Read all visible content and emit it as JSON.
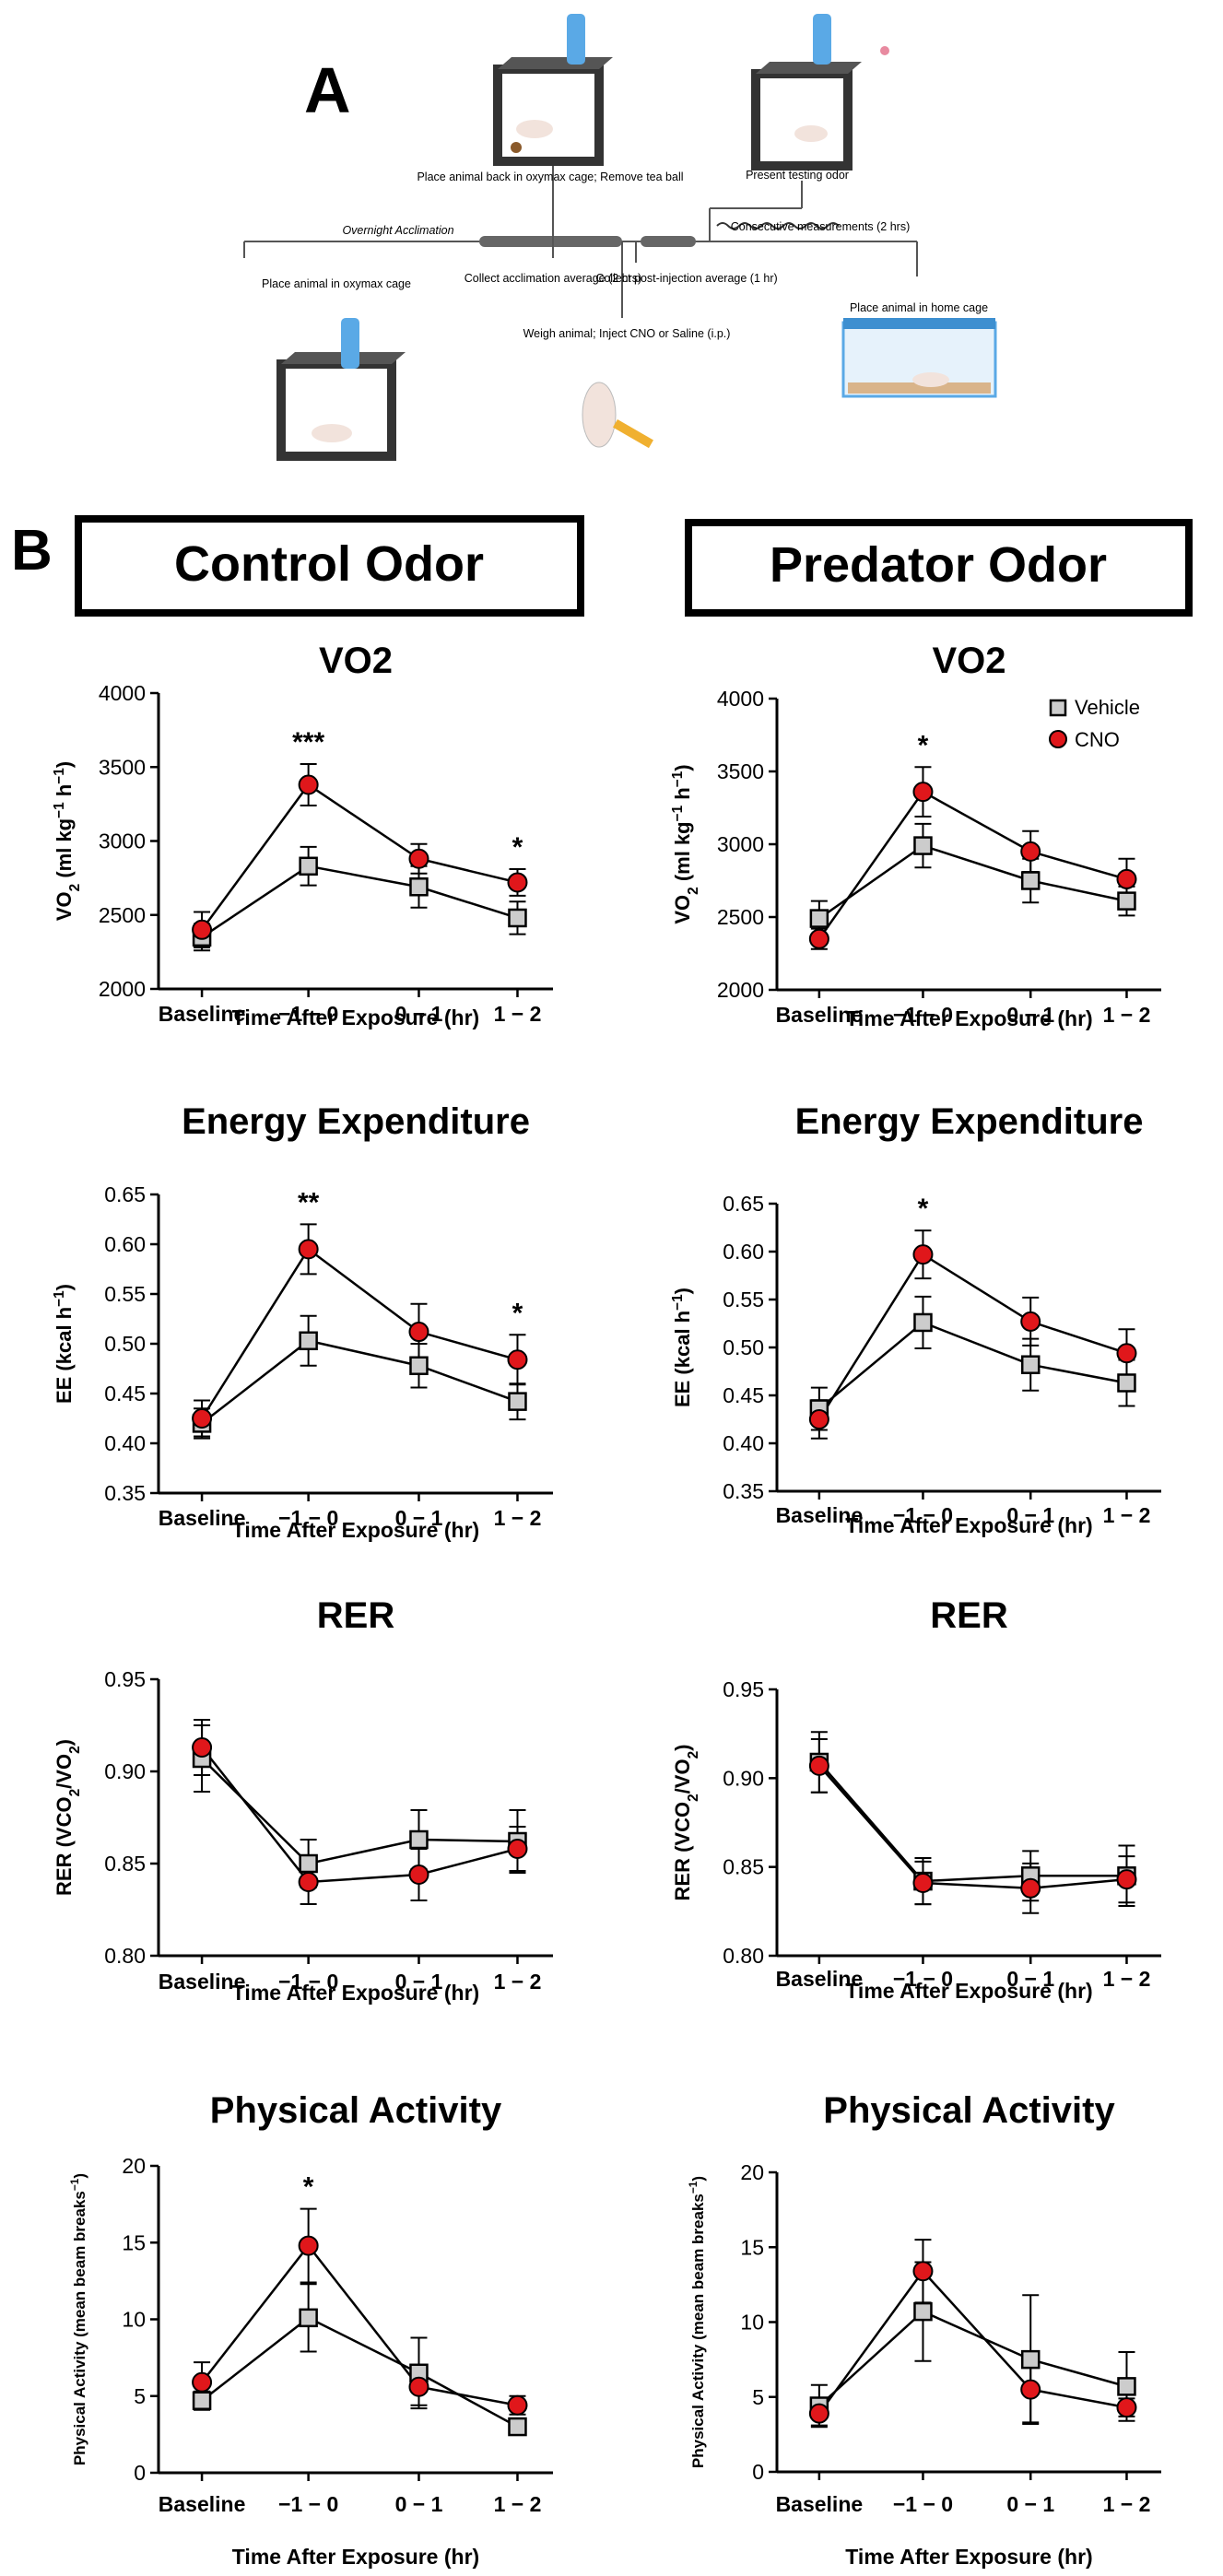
{
  "panel_a": {
    "letter": "A",
    "steps": {
      "place_oxymax": "Place animal in oxymax cage",
      "overnight": "Overnight Acclimation",
      "collect_acclimation": "Collect acclimation average (2 hrs)",
      "place_back": "Place animal back in oxymax cage; Remove tea ball",
      "weigh_inject": "Weigh animal; Inject CNO or Saline (i.p.)",
      "collect_post": "Collect post-injection average (1 hr)",
      "present_odor": "Present testing odor",
      "consecutive": "Consecutive measurements (2 hrs)",
      "home_cage": "Place animal in home cage"
    }
  },
  "panel_b": {
    "letter": "B",
    "headers": [
      "Control Odor",
      "Predator Odor"
    ]
  },
  "colors": {
    "vehicle": "#cccccc",
    "cno": "#e0171b",
    "line": "#000000"
  },
  "chart_data": [
    {
      "type": "line",
      "title": "VO2",
      "condition": "Control Odor",
      "categories": [
        "Baseline",
        "−1 − 0",
        "0 − 1",
        "1 − 2"
      ],
      "ylabel": "VO2 (ml kg−1 h−1)",
      "xlabel": "Time After Exposure (hr)",
      "ylim": [
        2000,
        4000
      ],
      "yticks": [
        "2000",
        "2500",
        "3000",
        "3500",
        "4000"
      ],
      "legend": null,
      "significance": [
        "",
        "***",
        "",
        "*"
      ],
      "series": [
        {
          "name": "Vehicle",
          "values": [
            2350,
            2830,
            2690,
            2480
          ],
          "errors": [
            90,
            130,
            140,
            110
          ]
        },
        {
          "name": "CNO",
          "values": [
            2400,
            3380,
            2880,
            2720
          ],
          "errors": [
            120,
            140,
            100,
            90
          ]
        }
      ]
    },
    {
      "type": "line",
      "title": "VO2",
      "condition": "Predator Odor",
      "categories": [
        "Baseline",
        "−1 − 0",
        "0 − 1",
        "1 − 2"
      ],
      "ylabel": "VO2 (ml kg−1 h−1)",
      "xlabel": "Time After Exposure (hr)",
      "ylim": [
        2000,
        4000
      ],
      "yticks": [
        "2000",
        "2500",
        "3000",
        "3500",
        "4000"
      ],
      "legend": [
        "Vehicle",
        "CNO"
      ],
      "significance": [
        "",
        "*",
        "",
        ""
      ],
      "series": [
        {
          "name": "Vehicle",
          "values": [
            2490,
            2990,
            2750,
            2610
          ],
          "errors": [
            120,
            150,
            150,
            100
          ]
        },
        {
          "name": "CNO",
          "values": [
            2350,
            3360,
            2950,
            2760
          ],
          "errors": [
            70,
            170,
            140,
            140
          ]
        }
      ]
    },
    {
      "type": "line",
      "title": "Energy Expenditure",
      "condition": "Control Odor",
      "categories": [
        "Baseline",
        "−1 − 0",
        "0 − 1",
        "1 − 2"
      ],
      "ylabel": "EE (kcal h−1)",
      "xlabel": "Time After Exposure (hr)",
      "ylim": [
        0.35,
        0.65
      ],
      "yticks": [
        "0.35",
        "0.40",
        "0.45",
        "0.50",
        "0.55",
        "0.60",
        "0.65"
      ],
      "legend": null,
      "significance": [
        "",
        "**",
        "",
        "*"
      ],
      "series": [
        {
          "name": "Vehicle",
          "values": [
            0.42,
            0.503,
            0.478,
            0.442
          ],
          "errors": [
            0.015,
            0.025,
            0.022,
            0.018
          ]
        },
        {
          "name": "CNO",
          "values": [
            0.425,
            0.595,
            0.512,
            0.484
          ],
          "errors": [
            0.018,
            0.025,
            0.028,
            0.025
          ]
        }
      ]
    },
    {
      "type": "line",
      "title": "Energy Expenditure",
      "condition": "Predator Odor",
      "categories": [
        "Baseline",
        "−1 − 0",
        "0 − 1",
        "1 − 2"
      ],
      "ylabel": "EE (kcal h−1)",
      "xlabel": "Time After Exposure (hr)",
      "ylim": [
        0.35,
        0.65
      ],
      "yticks": [
        "0.35",
        "0.40",
        "0.45",
        "0.50",
        "0.55",
        "0.60",
        "0.65"
      ],
      "legend": null,
      "significance": [
        "",
        "*",
        "",
        ""
      ],
      "series": [
        {
          "name": "Vehicle",
          "values": [
            0.436,
            0.526,
            0.482,
            0.463
          ],
          "errors": [
            0.022,
            0.027,
            0.027,
            0.024
          ]
        },
        {
          "name": "CNO",
          "values": [
            0.425,
            0.597,
            0.527,
            0.494
          ],
          "errors": [
            0.02,
            0.025,
            0.025,
            0.025
          ]
        }
      ]
    },
    {
      "type": "line",
      "title": "RER",
      "condition": "Control Odor",
      "categories": [
        "Baseline",
        "−1 − 0",
        "0 − 1",
        "1 − 2"
      ],
      "ylabel": "RER (VCO2/VO2)",
      "xlabel": "Time After Exposure (hr)",
      "ylim": [
        0.8,
        0.95
      ],
      "yticks": [
        "0.80",
        "0.85",
        "0.90",
        "0.95"
      ],
      "legend": null,
      "significance": [
        "",
        "",
        "",
        ""
      ],
      "series": [
        {
          "name": "Vehicle",
          "values": [
            0.907,
            0.85,
            0.863,
            0.862
          ],
          "errors": [
            0.018,
            0.013,
            0.016,
            0.017
          ]
        },
        {
          "name": "CNO",
          "values": [
            0.913,
            0.84,
            0.844,
            0.858
          ],
          "errors": [
            0.015,
            0.012,
            0.014,
            0.012
          ]
        }
      ]
    },
    {
      "type": "line",
      "title": "RER",
      "condition": "Predator Odor",
      "categories": [
        "Baseline",
        "−1 − 0",
        "0 − 1",
        "1 − 2"
      ],
      "ylabel": "RER (VCO2/VO2)",
      "xlabel": "Time After Exposure (hr)",
      "ylim": [
        0.8,
        0.95
      ],
      "yticks": [
        "0.80",
        "0.85",
        "0.90",
        "0.95"
      ],
      "legend": null,
      "significance": [
        "",
        "",
        "",
        ""
      ],
      "series": [
        {
          "name": "Vehicle",
          "values": [
            0.909,
            0.842,
            0.845,
            0.845
          ],
          "errors": [
            0.017,
            0.013,
            0.014,
            0.017
          ]
        },
        {
          "name": "CNO",
          "values": [
            0.907,
            0.841,
            0.838,
            0.843
          ],
          "errors": [
            0.015,
            0.012,
            0.014,
            0.013
          ]
        }
      ]
    },
    {
      "type": "line",
      "title": "Physical Activity",
      "condition": "Control Odor",
      "categories": [
        "Baseline",
        "−1 − 0",
        "0 − 1",
        "1 − 2"
      ],
      "ylabel": "Physical Activity (mean beam breaks−1)",
      "xlabel": "Time After Exposure (hr)",
      "ylim": [
        0,
        20
      ],
      "yticks": [
        "0",
        "5",
        "10",
        "15",
        "20"
      ],
      "legend": null,
      "significance": [
        "",
        "*",
        "",
        ""
      ],
      "series": [
        {
          "name": "Vehicle",
          "values": [
            4.7,
            10.1,
            6.5,
            3.0
          ],
          "errors": [
            0.6,
            2.2,
            2.3,
            0.5
          ]
        },
        {
          "name": "CNO",
          "values": [
            5.9,
            14.8,
            5.6,
            4.4
          ],
          "errors": [
            1.3,
            2.4,
            1.2,
            0.6
          ]
        }
      ]
    },
    {
      "type": "line",
      "title": "Physical Activity",
      "condition": "Predator Odor",
      "categories": [
        "Baseline",
        "−1 − 0",
        "0 − 1",
        "1 − 2"
      ],
      "ylabel": "Physical Activity (mean beam breaks−1)",
      "xlabel": "Time After Exposure (hr)",
      "ylim": [
        0,
        20
      ],
      "yticks": [
        "0",
        "5",
        "10",
        "15",
        "20"
      ],
      "legend": null,
      "significance": [
        "",
        "",
        "",
        ""
      ],
      "series": [
        {
          "name": "Vehicle",
          "values": [
            4.4,
            10.7,
            7.5,
            5.7
          ],
          "errors": [
            1.4,
            3.3,
            4.3,
            2.3
          ]
        },
        {
          "name": "CNO",
          "values": [
            3.9,
            13.4,
            5.5,
            4.3
          ],
          "errors": [
            0.8,
            2.1,
            2.2,
            0.6
          ]
        }
      ]
    }
  ]
}
